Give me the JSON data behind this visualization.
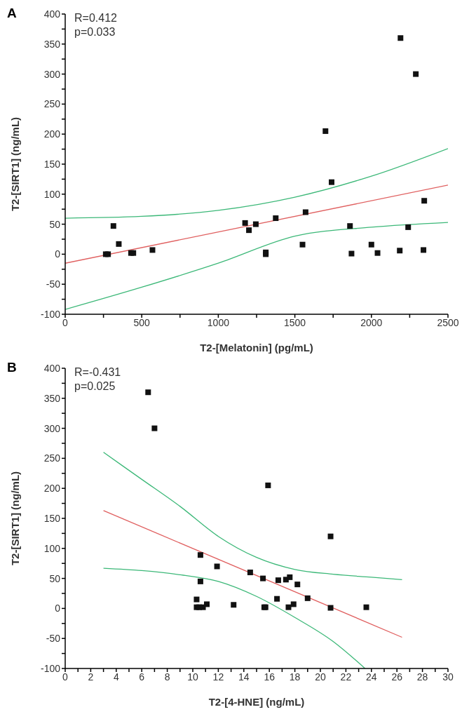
{
  "chart_data": [
    {
      "type": "scatter",
      "title": "A",
      "xlabel": "T2-[Melatonin] (pg/mL)",
      "ylabel": "T2-[SIRT1] (ng/mL)",
      "annotations": [
        "R=0.412",
        "p=0.033"
      ],
      "xlim": [
        0,
        2500
      ],
      "ylim": [
        -100,
        400
      ],
      "xticks": [
        0,
        {
          "value": 250,
          "label": null
        },
        500,
        {
          "value": 750,
          "label": null
        },
        1000,
        {
          "value": 1250,
          "label": null
        },
        1500,
        {
          "value": 1750,
          "label": null
        },
        2000,
        {
          "value": 2250,
          "label": null
        },
        2500
      ],
      "yticks": [
        -100,
        {
          "value": -75,
          "label": null
        },
        -50,
        {
          "value": -25,
          "label": null
        },
        0,
        {
          "value": 25,
          "label": null
        },
        50,
        {
          "value": 75,
          "label": null
        },
        100,
        {
          "value": 125,
          "label": null
        },
        150,
        {
          "value": 175,
          "label": null
        },
        200,
        {
          "value": 225,
          "label": null
        },
        250,
        {
          "value": 275,
          "label": null
        },
        300,
        {
          "value": 325,
          "label": null
        },
        350,
        {
          "value": 375,
          "label": null
        },
        400
      ],
      "series": [
        {
          "marker": "square",
          "color": "#111111",
          "x": [
            265,
            280,
            315,
            350,
            430,
            445,
            570,
            1175,
            1200,
            1245,
            1310,
            1310,
            1375,
            1550,
            1570,
            1700,
            1740,
            1860,
            1870,
            2000,
            2040,
            2190,
            2185,
            2240,
            2290,
            2345,
            2340
          ],
          "values": [
            0,
            0,
            47,
            17,
            2,
            2,
            7,
            52,
            40,
            50,
            0,
            3,
            60,
            16,
            70,
            205,
            120,
            47,
            1,
            16,
            2,
            360,
            6,
            45,
            300,
            89,
            7
          ]
        },
        {
          "type": "line",
          "color": "#e06060",
          "x": [
            0,
            2500
          ],
          "values": [
            -15,
            115
          ]
        },
        {
          "type": "line",
          "color": "#3cb878",
          "x": [
            0,
            500,
            1000,
            1500,
            2000,
            2500
          ],
          "values": [
            60,
            63,
            73,
            95,
            130,
            176
          ]
        },
        {
          "type": "line",
          "color": "#3cb878",
          "x": [
            0,
            500,
            1000,
            1500,
            2000,
            2500
          ],
          "values": [
            -92,
            -55,
            -15,
            30,
            45,
            53
          ]
        }
      ]
    },
    {
      "type": "scatter",
      "title": "B",
      "xlabel": "T2-[4-HNE] (ng/mL)",
      "ylabel": "T2-[SIRT1] (ng/mL)",
      "annotations": [
        "R=-0.431",
        "p=0.025"
      ],
      "xlim": [
        0,
        30
      ],
      "ylim": [
        -100,
        400
      ],
      "xticks": [
        0,
        {
          "value": 1,
          "label": null
        },
        2,
        {
          "value": 3,
          "label": null
        },
        4,
        {
          "value": 5,
          "label": null
        },
        6,
        {
          "value": 7,
          "label": null
        },
        8,
        {
          "value": 9,
          "label": null
        },
        10,
        {
          "value": 11,
          "label": null
        },
        12,
        {
          "value": 13,
          "label": null
        },
        14,
        {
          "value": 15,
          "label": null
        },
        16,
        {
          "value": 17,
          "label": null
        },
        18,
        {
          "value": 19,
          "label": null
        },
        20,
        {
          "value": 21,
          "label": null
        },
        22,
        {
          "value": 23,
          "label": null
        },
        24,
        {
          "value": 25,
          "label": null
        },
        26,
        {
          "value": 27,
          "label": null
        },
        28,
        {
          "value": 29,
          "label": null
        },
        30
      ],
      "yticks": [
        -100,
        {
          "value": -75,
          "label": null
        },
        -50,
        {
          "value": -25,
          "label": null
        },
        0,
        {
          "value": 25,
          "label": null
        },
        50,
        {
          "value": 75,
          "label": null
        },
        100,
        {
          "value": 125,
          "label": null
        },
        150,
        {
          "value": 175,
          "label": null
        },
        200,
        {
          "value": 225,
          "label": null
        },
        250,
        {
          "value": 275,
          "label": null
        },
        300,
        {
          "value": 325,
          "label": null
        },
        350,
        {
          "value": 375,
          "label": null
        },
        400
      ],
      "series": [
        {
          "marker": "square",
          "color": "#111111",
          "x": [
            6.5,
            7,
            10.3,
            10.3,
            10.5,
            10.6,
            10.6,
            10.8,
            11.1,
            11.9,
            13.2,
            14.5,
            15.5,
            15.6,
            15.7,
            15.9,
            16.6,
            16.7,
            17.3,
            17.5,
            17.6,
            17.9,
            18.2,
            19,
            20.8,
            20.8,
            23.6
          ],
          "values": [
            360,
            300,
            15,
            2,
            2,
            89,
            45,
            2,
            7,
            70,
            6,
            60,
            50,
            2,
            2,
            205,
            16,
            47,
            48,
            2,
            52,
            7,
            40,
            17,
            120,
            1,
            2
          ]
        },
        {
          "type": "line",
          "color": "#e06060",
          "x": [
            3,
            26.4
          ],
          "values": [
            163,
            -48
          ]
        },
        {
          "type": "line",
          "color": "#3cb878",
          "x": [
            3,
            6,
            9,
            12,
            15,
            18,
            21,
            24,
            26.4
          ],
          "values": [
            260,
            215,
            170,
            120,
            85,
            65,
            57,
            52,
            48
          ]
        },
        {
          "type": "line",
          "color": "#3cb878",
          "x": [
            3,
            6,
            9,
            12,
            15,
            18,
            21,
            23.5
          ],
          "values": [
            67,
            63,
            56,
            45,
            20,
            -15,
            -55,
            -100
          ]
        }
      ]
    }
  ]
}
